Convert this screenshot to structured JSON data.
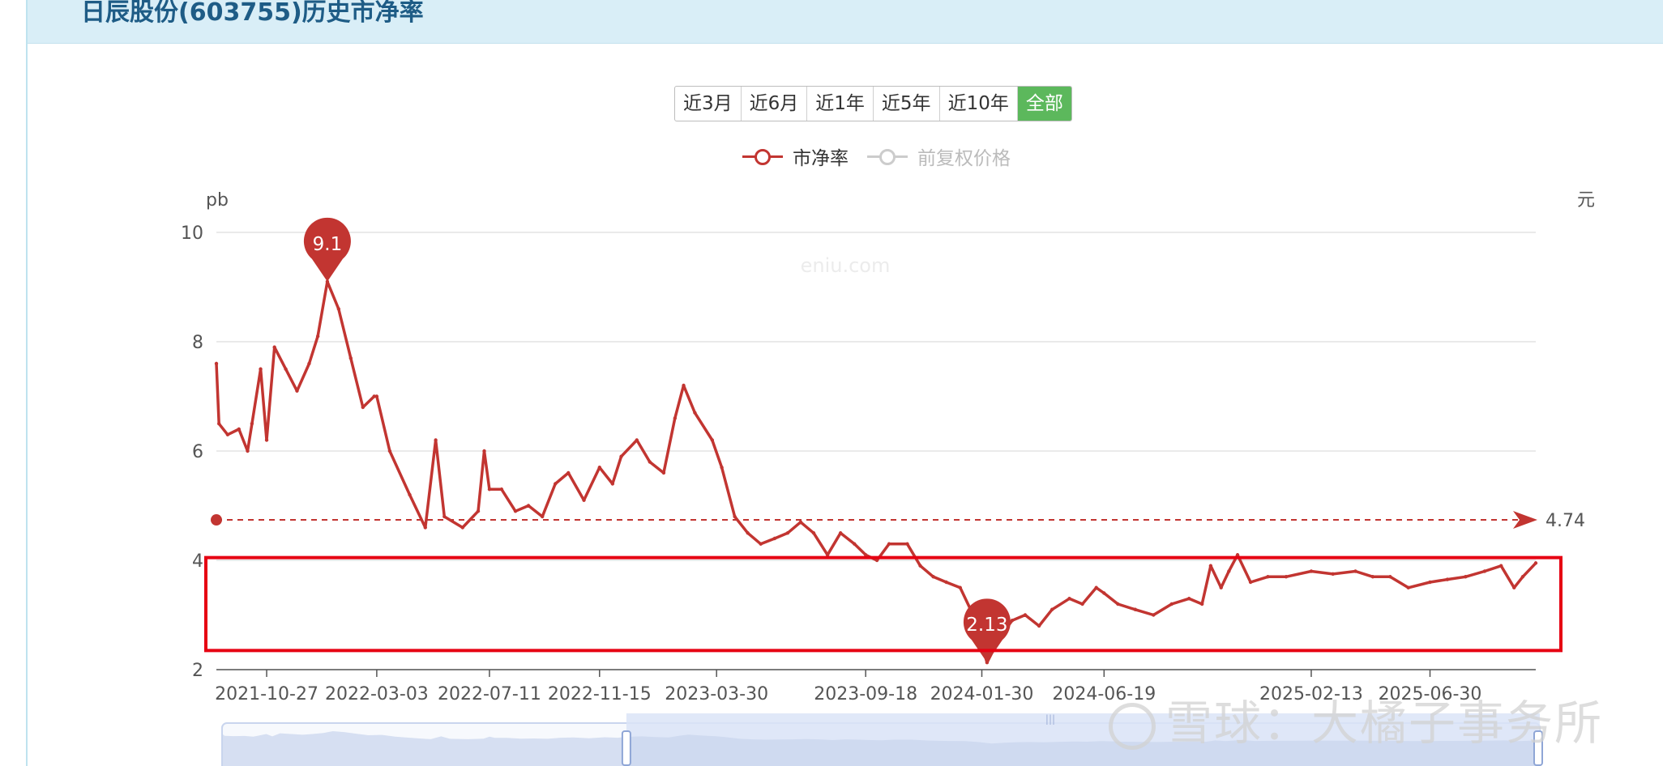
{
  "page": {
    "title": "日辰股份(603755)历史市净率"
  },
  "range_buttons": [
    {
      "label": "近3月",
      "active": false
    },
    {
      "label": "近6月",
      "active": false
    },
    {
      "label": "近1年",
      "active": false
    },
    {
      "label": "近5年",
      "active": false
    },
    {
      "label": "近10年",
      "active": false
    },
    {
      "label": "全部",
      "active": true
    }
  ],
  "legend": [
    {
      "name": "市净率",
      "color": "#c23531",
      "active": true
    },
    {
      "name": "前复权价格",
      "color": "#cccccc",
      "active": false
    }
  ],
  "watermark": {
    "site": "eniu.com",
    "social": "雪球：大橘子事务所"
  },
  "colors": {
    "series": "#c23531",
    "highlight_box": "#e60012",
    "grid": "#e3e3e3",
    "zoom_fill": "#dbe4f7"
  },
  "chart_data": {
    "type": "line",
    "y_axis_left": {
      "label": "pb",
      "ticks": [
        "2",
        "4",
        "6",
        "8",
        "10"
      ],
      "range": [
        2,
        10
      ]
    },
    "y_axis_right": {
      "label": "元"
    },
    "x_labels": [
      "2021-10-27",
      "2022-03-03",
      "2022-07-11",
      "2022-11-15",
      "2023-03-30",
      "2023-09-18",
      "2024-01-30",
      "2024-06-19",
      "2025-02-13",
      "2025-06-30"
    ],
    "x_range": [
      "2021-08-30",
      "2025-10-30"
    ],
    "series": [
      {
        "name": "市净率",
        "points": [
          [
            "2021-08-30",
            7.6
          ],
          [
            "2021-09-02",
            6.5
          ],
          [
            "2021-09-12",
            6.3
          ],
          [
            "2021-09-25",
            6.4
          ],
          [
            "2021-10-05",
            6.0
          ],
          [
            "2021-10-10",
            6.5
          ],
          [
            "2021-10-20",
            7.5
          ],
          [
            "2021-10-27",
            6.2
          ],
          [
            "2021-11-05",
            7.9
          ],
          [
            "2021-11-18",
            7.5
          ],
          [
            "2021-12-01",
            7.1
          ],
          [
            "2021-12-15",
            7.6
          ],
          [
            "2021-12-25",
            8.1
          ],
          [
            "2022-01-05",
            9.1
          ],
          [
            "2022-01-18",
            8.6
          ],
          [
            "2022-02-01",
            7.7
          ],
          [
            "2022-02-15",
            6.8
          ],
          [
            "2022-02-28",
            7.0
          ],
          [
            "2022-03-03",
            7.0
          ],
          [
            "2022-03-18",
            6.0
          ],
          [
            "2022-04-10",
            5.2
          ],
          [
            "2022-04-28",
            4.6
          ],
          [
            "2022-05-10",
            6.2
          ],
          [
            "2022-05-20",
            4.8
          ],
          [
            "2022-06-10",
            4.6
          ],
          [
            "2022-06-28",
            4.9
          ],
          [
            "2022-07-05",
            6.0
          ],
          [
            "2022-07-11",
            5.3
          ],
          [
            "2022-07-25",
            5.3
          ],
          [
            "2022-08-10",
            4.9
          ],
          [
            "2022-08-25",
            5.0
          ],
          [
            "2022-09-10",
            4.8
          ],
          [
            "2022-09-25",
            5.4
          ],
          [
            "2022-10-10",
            5.6
          ],
          [
            "2022-10-28",
            5.1
          ],
          [
            "2022-11-15",
            5.7
          ],
          [
            "2022-11-30",
            5.4
          ],
          [
            "2022-12-10",
            5.9
          ],
          [
            "2022-12-28",
            6.2
          ],
          [
            "2023-01-12",
            5.8
          ],
          [
            "2023-01-28",
            5.6
          ],
          [
            "2023-02-10",
            6.6
          ],
          [
            "2023-02-20",
            7.2
          ],
          [
            "2023-03-05",
            6.7
          ],
          [
            "2023-03-25",
            6.2
          ],
          [
            "2023-04-05",
            5.7
          ],
          [
            "2023-04-20",
            4.8
          ],
          [
            "2023-05-05",
            4.5
          ],
          [
            "2023-05-20",
            4.3
          ],
          [
            "2023-06-05",
            4.4
          ],
          [
            "2023-06-20",
            4.5
          ],
          [
            "2023-07-05",
            4.7
          ],
          [
            "2023-07-20",
            4.5
          ],
          [
            "2023-08-05",
            4.1
          ],
          [
            "2023-08-20",
            4.5
          ],
          [
            "2023-09-05",
            4.3
          ],
          [
            "2023-09-18",
            4.1
          ],
          [
            "2023-10-01",
            4.0
          ],
          [
            "2023-10-15",
            4.3
          ],
          [
            "2023-11-05",
            4.3
          ],
          [
            "2023-11-20",
            3.9
          ],
          [
            "2023-12-05",
            3.7
          ],
          [
            "2023-12-20",
            3.6
          ],
          [
            "2024-01-05",
            3.5
          ],
          [
            "2024-01-20",
            3.0
          ],
          [
            "2024-02-05",
            2.13
          ],
          [
            "2024-02-20",
            2.6
          ],
          [
            "2024-03-05",
            2.9
          ],
          [
            "2024-03-20",
            3.0
          ],
          [
            "2024-04-05",
            2.8
          ],
          [
            "2024-04-20",
            3.1
          ],
          [
            "2024-05-10",
            3.3
          ],
          [
            "2024-05-25",
            3.2
          ],
          [
            "2024-06-10",
            3.5
          ],
          [
            "2024-06-19",
            3.4
          ],
          [
            "2024-07-05",
            3.2
          ],
          [
            "2024-07-25",
            3.1
          ],
          [
            "2024-08-15",
            3.0
          ],
          [
            "2024-09-05",
            3.2
          ],
          [
            "2024-09-25",
            3.3
          ],
          [
            "2024-10-10",
            3.2
          ],
          [
            "2024-10-20",
            3.9
          ],
          [
            "2024-11-01",
            3.5
          ],
          [
            "2024-11-10",
            3.8
          ],
          [
            "2024-11-20",
            4.1
          ],
          [
            "2024-12-05",
            3.6
          ],
          [
            "2024-12-25",
            3.7
          ],
          [
            "2025-01-15",
            3.7
          ],
          [
            "2025-02-13",
            3.8
          ],
          [
            "2025-03-10",
            3.75
          ],
          [
            "2025-04-05",
            3.8
          ],
          [
            "2025-04-25",
            3.7
          ],
          [
            "2025-05-15",
            3.7
          ],
          [
            "2025-06-05",
            3.5
          ],
          [
            "2025-06-30",
            3.6
          ],
          [
            "2025-07-20",
            3.65
          ],
          [
            "2025-08-10",
            3.7
          ],
          [
            "2025-09-01",
            3.8
          ],
          [
            "2025-09-20",
            3.9
          ],
          [
            "2025-10-05",
            3.5
          ],
          [
            "2025-10-15",
            3.7
          ],
          [
            "2025-10-30",
            3.95
          ]
        ]
      }
    ],
    "markers": [
      {
        "label": "9.1",
        "date": "2022-01-05",
        "value": 9.1
      },
      {
        "label": "2.13",
        "date": "2024-02-05",
        "value": 2.13
      }
    ],
    "average_line": {
      "label": "4.74",
      "value": 4.74
    },
    "highlight_box": {
      "y_range": [
        2.35,
        4.05
      ]
    },
    "zoom": {
      "window": [
        "2022-12-10",
        "2025-10-30"
      ]
    }
  }
}
